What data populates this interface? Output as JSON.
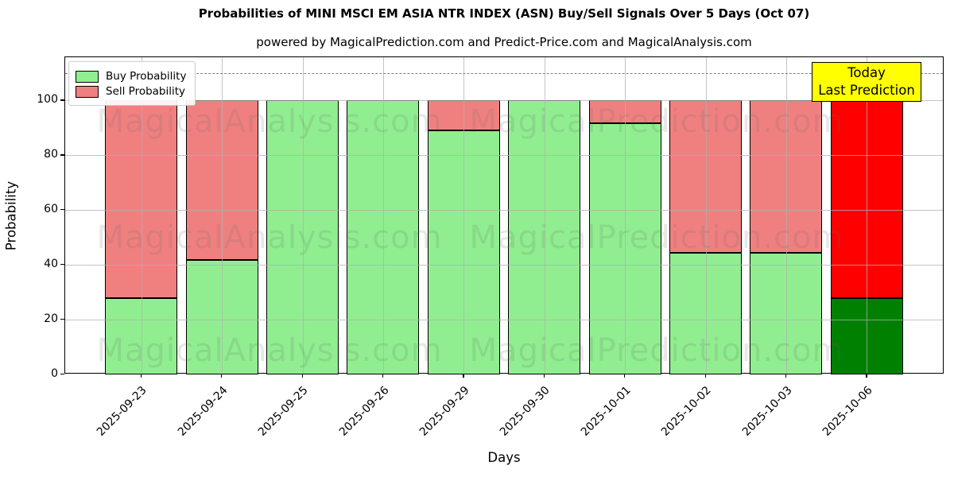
{
  "title": "Probabilities of MINI MSCI EM ASIA NTR INDEX (ASN) Buy/Sell Signals Over 5 Days (Oct 07)",
  "subtitle": "powered by MagicalPrediction.com and Predict-Price.com and MagicalAnalysis.com",
  "axes": {
    "ylabel": "Probability",
    "xlabel": "Days",
    "yticks": [
      0,
      20,
      40,
      60,
      80,
      100
    ],
    "ymax": 115.7
  },
  "legend": [
    {
      "label": "Buy Probability",
      "color": "#90ee90"
    },
    {
      "label": "Sell Probability",
      "color": "#f08080"
    }
  ],
  "annotation": {
    "line1": "Today",
    "line2": "Last Prediction",
    "bg_color": "#ffff00"
  },
  "watermarks": {
    "left_text": "MagicalAnalysis.com",
    "right_text": "MagicalPrediction.com"
  },
  "colors": {
    "buy": "#90ee90",
    "sell": "#f08080",
    "buy_today": "#008000",
    "sell_today": "#ff0000",
    "dashed_line": "#7f7f7f",
    "grid": "#b0b0b0",
    "annotation_bg": "#ffff00"
  },
  "chart_data": {
    "type": "bar",
    "stacked": true,
    "title": "Probabilities of MINI MSCI EM ASIA NTR INDEX (ASN) Buy/Sell Signals Over 5 Days (Oct 07)",
    "xlabel": "Days",
    "ylabel": "Probability",
    "ylim": [
      0,
      115.7
    ],
    "grid": true,
    "legend_position": "upper left",
    "dashed_guide_y": 110,
    "categories": [
      "2025-09-23",
      "2025-09-24",
      "2025-09-25",
      "2025-09-26",
      "2025-09-29",
      "2025-09-30",
      "2025-10-01",
      "2025-10-02",
      "2025-10-03",
      "2025-10-06"
    ],
    "series": [
      {
        "name": "Buy Probability",
        "values": [
          27.8,
          41.7,
          100,
          100,
          88.9,
          100,
          91.7,
          44.4,
          44.4,
          27.8
        ]
      },
      {
        "name": "Sell Probability",
        "values": [
          72.2,
          58.3,
          0,
          0,
          11.1,
          0,
          8.3,
          55.6,
          55.6,
          72.2
        ]
      }
    ],
    "today_bar_index": 9,
    "today_bar_note": "Last bar uses dark green (buy) and bright red (sell)"
  }
}
